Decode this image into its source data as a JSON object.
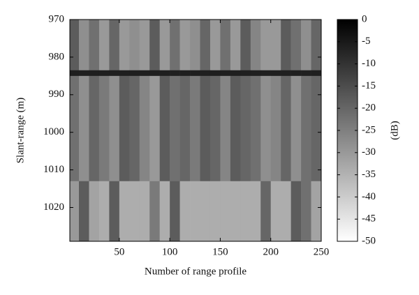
{
  "chart_data": {
    "type": "heatmap",
    "xlabel": "Number of range profile",
    "ylabel": "Slant-range (m)",
    "colorbar_label": "(dB)",
    "xlim": [
      1,
      250
    ],
    "xticks": [
      50,
      100,
      150,
      200,
      250
    ],
    "ylim": [
      970,
      1029
    ],
    "yticks": [
      970,
      980,
      990,
      1000,
      1010,
      1020
    ],
    "y_inverted": true,
    "clim": [
      -50,
      0
    ],
    "cticks": [
      0,
      -5,
      -10,
      -15,
      -20,
      -25,
      -30,
      -35,
      -40,
      -45,
      -50
    ],
    "colormap": "gray_reversed",
    "x_edges": [
      1,
      10,
      20,
      30,
      40,
      50,
      60,
      70,
      80,
      90,
      100,
      110,
      120,
      130,
      140,
      150,
      160,
      170,
      180,
      190,
      200,
      210,
      220,
      230,
      240,
      250
    ],
    "y_edges": [
      970,
      983.5,
      985,
      1013,
      1029
    ],
    "z": [
      [
        -18,
        -28,
        -22,
        -30,
        -20,
        -30,
        -28,
        -30,
        -18,
        -30,
        -22,
        -30,
        -28,
        -20,
        -30,
        -22,
        -30,
        -18,
        -26,
        -30,
        -30,
        -18,
        -22,
        -28,
        -20
      ],
      [
        -6,
        -6,
        -6,
        -6,
        -6,
        -6,
        -6,
        -6,
        -6,
        -6,
        -6,
        -6,
        -6,
        -6,
        -6,
        -6,
        -6,
        -6,
        -6,
        -6,
        -6,
        -6,
        -6,
        -6,
        -6
      ],
      [
        -22,
        -28,
        -20,
        -24,
        -28,
        -18,
        -20,
        -26,
        -30,
        -18,
        -22,
        -20,
        -24,
        -18,
        -20,
        -26,
        -18,
        -20,
        -22,
        -28,
        -26,
        -20,
        -28,
        -22,
        -20
      ],
      [
        -30,
        -18,
        -32,
        -34,
        -18,
        -34,
        -34,
        -34,
        -24,
        -34,
        -18,
        -34,
        -34,
        -34,
        -34,
        -34,
        -34,
        -34,
        -34,
        -20,
        -34,
        -34,
        -18,
        -22,
        -32
      ]
    ]
  }
}
